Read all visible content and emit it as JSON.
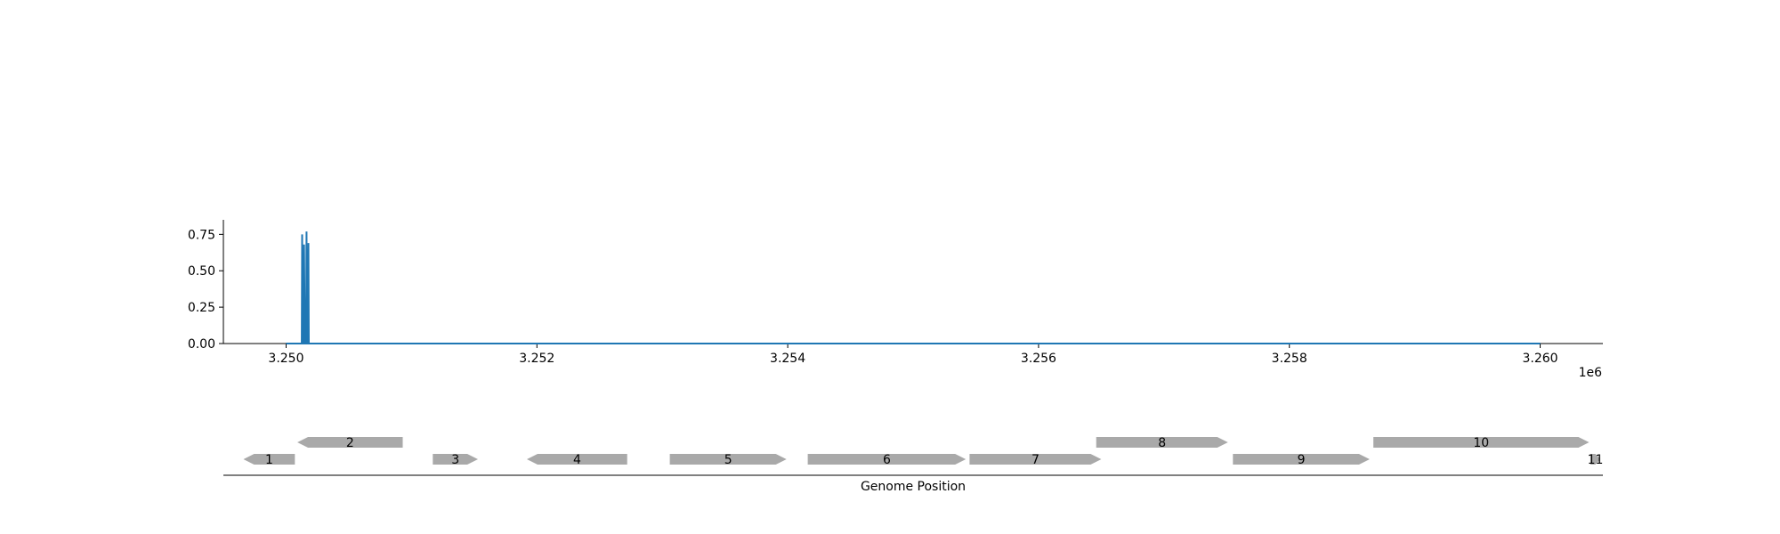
{
  "chart_data": [
    {
      "type": "line",
      "title": "",
      "xlabel": "",
      "ylabel": "",
      "xlim": [
        3249500,
        3260500
      ],
      "ylim": [
        0,
        0.85
      ],
      "x_offset_label": "1e6",
      "x_ticks": [
        3250000,
        3252000,
        3254000,
        3256000,
        3258000,
        3260000
      ],
      "x_tick_labels": [
        "3.250",
        "3.252",
        "3.254",
        "3.256",
        "3.258",
        "3.260"
      ],
      "y_ticks": [
        0,
        0.25,
        0.5,
        0.75
      ],
      "y_tick_labels": [
        "0.00",
        "0.25",
        "0.50",
        "0.75"
      ],
      "color": "#1f77b4",
      "grid": false,
      "series": [
        {
          "x": [
            3250000,
            3250125,
            3250128,
            3250131,
            3250140,
            3250143,
            3250150,
            3250160,
            3250163,
            3250166,
            3250175,
            3250178,
            3250181,
            3250190,
            3260000
          ],
          "y": [
            0,
            0,
            0.75,
            0,
            0,
            0.68,
            0,
            0,
            0.77,
            0,
            0,
            0.69,
            0,
            0,
            0
          ]
        }
      ]
    },
    {
      "type": "gene-track",
      "xlabel": "Genome Position",
      "color": "#a9a9a9",
      "genes": [
        {
          "label": "1",
          "start": 3249660,
          "end": 3250070,
          "strand": "-",
          "row": 0
        },
        {
          "label": "2",
          "start": 3250090,
          "end": 3250930,
          "strand": "-",
          "row": 1
        },
        {
          "label": "3",
          "start": 3251170,
          "end": 3251530,
          "strand": "+",
          "row": 0
        },
        {
          "label": "4",
          "start": 3251920,
          "end": 3252720,
          "strand": "-",
          "row": 0
        },
        {
          "label": "5",
          "start": 3253060,
          "end": 3253990,
          "strand": "+",
          "row": 0
        },
        {
          "label": "6",
          "start": 3254160,
          "end": 3255420,
          "strand": "+",
          "row": 0
        },
        {
          "label": "7",
          "start": 3255450,
          "end": 3256500,
          "strand": "+",
          "row": 0
        },
        {
          "label": "8",
          "start": 3256460,
          "end": 3257510,
          "strand": "+",
          "row": 1
        },
        {
          "label": "9",
          "start": 3257550,
          "end": 3258640,
          "strand": "+",
          "row": 0
        },
        {
          "label": "10",
          "start": 3258670,
          "end": 3260390,
          "strand": "+",
          "row": 1
        },
        {
          "label": "11",
          "start": 3260400,
          "end": 3260480,
          "strand": "+",
          "row": 0
        }
      ]
    }
  ]
}
